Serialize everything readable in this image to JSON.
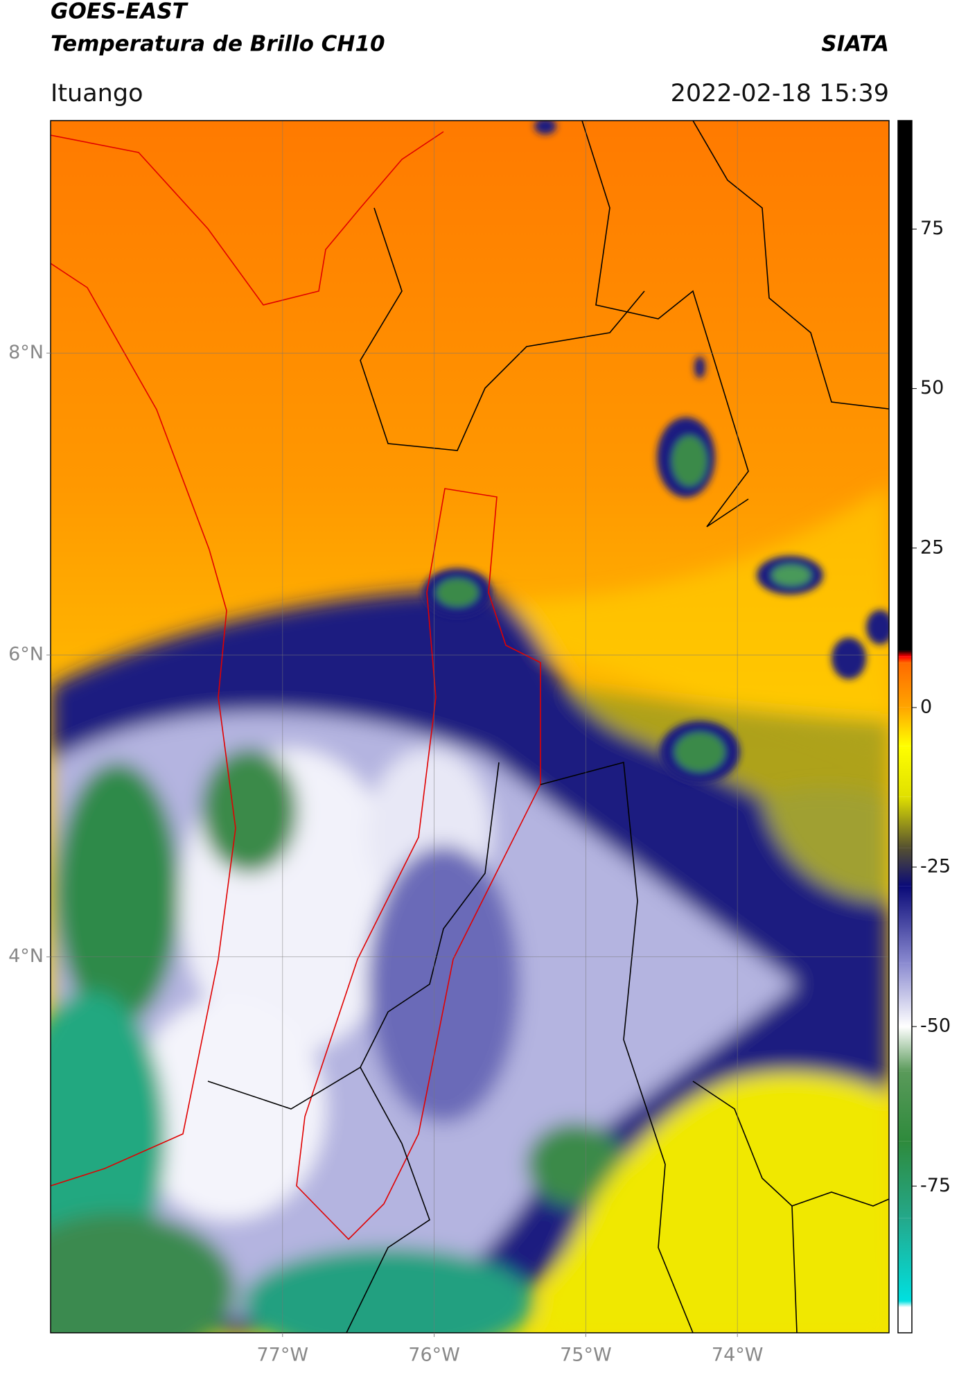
{
  "header": {
    "satellite": "GOES-EAST",
    "product": "Temperatura de Brillo CH10",
    "brand": "SIATA",
    "region": "Ituango",
    "timestamp": "2022-02-18 15:39"
  },
  "map": {
    "xlim": [
      -78.53,
      -73.0
    ],
    "ylim": [
      1.51,
      9.54
    ],
    "xticks": [
      {
        "value": -77,
        "label": "77°W"
      },
      {
        "value": -76,
        "label": "76°W"
      },
      {
        "value": -75,
        "label": "75°W"
      },
      {
        "value": -74,
        "label": "74°W"
      }
    ],
    "yticks": [
      {
        "value": 8,
        "label": "8°N"
      },
      {
        "value": 6,
        "label": "6°N"
      },
      {
        "value": 4,
        "label": "4°N"
      }
    ],
    "grid": true
  },
  "colorbar": {
    "lim": [
      -98,
      92
    ],
    "ticks": [
      -75,
      -50,
      -25,
      0,
      25,
      50,
      75
    ],
    "stops": [
      {
        "value": -98,
        "color": "#ffffff"
      },
      {
        "value": -94,
        "color": "#ffffff"
      },
      {
        "value": -93,
        "color": "#00e0e0"
      },
      {
        "value": -80,
        "color": "#24a88a"
      },
      {
        "value": -68,
        "color": "#2e8a3c"
      },
      {
        "value": -57,
        "color": "#5a9a5a"
      },
      {
        "value": -50,
        "color": "#ffffff"
      },
      {
        "value": -40,
        "color": "#8a8ad0"
      },
      {
        "value": -28,
        "color": "#0a0a78"
      },
      {
        "value": -22,
        "color": "#555030"
      },
      {
        "value": -14,
        "color": "#e0e000"
      },
      {
        "value": -6,
        "color": "#ffff00"
      },
      {
        "value": 0,
        "color": "#ffa500"
      },
      {
        "value": 7,
        "color": "#ff6a00"
      },
      {
        "value": 8,
        "color": "#ff0000"
      },
      {
        "value": 9,
        "color": "#000000"
      },
      {
        "value": 92,
        "color": "#000000"
      }
    ]
  }
}
